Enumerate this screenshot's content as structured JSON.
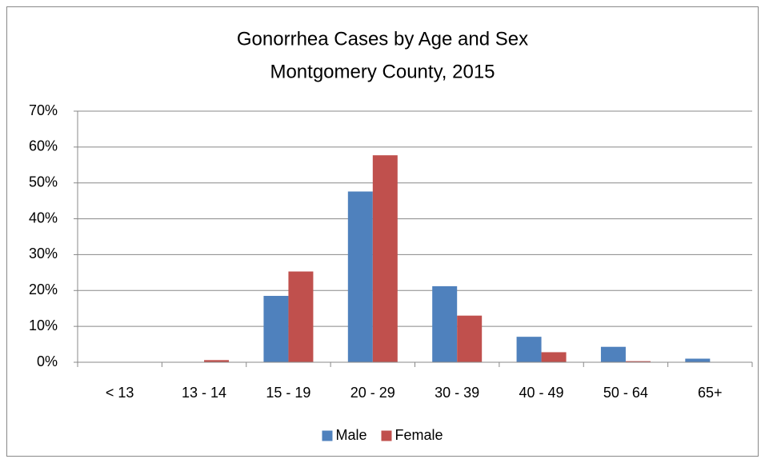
{
  "chart_data": {
    "type": "bar",
    "title": "Gonorrhea Cases by Age and Sex",
    "subtitle": "Montgomery County, 2015",
    "categories": [
      "< 13",
      "13 - 14",
      "15 - 19",
      "20 - 29",
      "30 - 39",
      "40 - 49",
      "50 - 64",
      "65+"
    ],
    "series": [
      {
        "name": "Male",
        "color": "#4f81bd",
        "values": [
          0,
          0,
          18.5,
          47.6,
          21.2,
          7.1,
          4.3,
          1.0
        ]
      },
      {
        "name": "Female",
        "color": "#c0504d",
        "values": [
          0,
          0.6,
          25.3,
          57.7,
          13.0,
          2.8,
          0.3,
          0
        ]
      }
    ],
    "ylim": [
      0,
      70
    ],
    "yticks": [
      {
        "value": 0,
        "label": "0%"
      },
      {
        "value": 10,
        "label": "10%"
      },
      {
        "value": 20,
        "label": "20%"
      },
      {
        "value": 30,
        "label": "30%"
      },
      {
        "value": 40,
        "label": "40%"
      },
      {
        "value": 50,
        "label": "50%"
      },
      {
        "value": 60,
        "label": "60%"
      },
      {
        "value": 70,
        "label": "70%"
      }
    ],
    "grid": true,
    "legend": "bottom"
  }
}
